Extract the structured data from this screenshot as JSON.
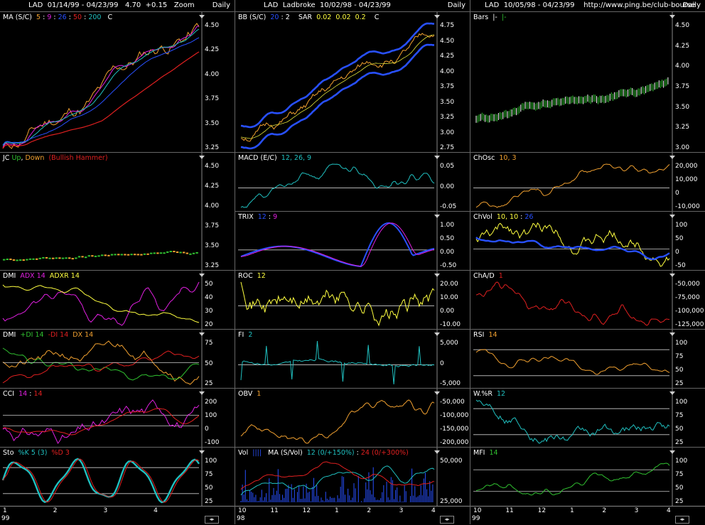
{
  "colors": {
    "bg": "#000000",
    "orange": "#f0a030",
    "blue": "#2850ff",
    "red": "#e02020",
    "green": "#30c030",
    "cyan": "#20c0c0",
    "yellow": "#ffff40",
    "magenta": "#e020e0",
    "white": "#ffffff"
  },
  "col1": {
    "title": "LAD  01/14/99 - 04/23/99   4.70  +0.15   Zoom",
    "period": "Daily",
    "panels": [
      {
        "id": "ma",
        "label": "MA (S/C) ",
        "label_parts": [
          {
            "t": "MA (S/C)  ",
            "c": "#ffffff"
          },
          {
            "t": "5",
            "c": "#f0a030"
          },
          {
            "t": " : ",
            "c": "#ffffff"
          },
          {
            "t": "9",
            "c": "#e020e0"
          },
          {
            "t": " : ",
            "c": "#ffffff"
          },
          {
            "t": "26",
            "c": "#2850ff"
          },
          {
            "t": " : ",
            "c": "#ffffff"
          },
          {
            "t": "50",
            "c": "#e02020"
          },
          {
            "t": " : ",
            "c": "#ffffff"
          },
          {
            "t": "200",
            "c": "#20c0c0"
          },
          {
            "t": "   C  ",
            "c": "#ffffff"
          }
        ],
        "ticks": [
          "4.50",
          "4.25",
          "4.00",
          "3.75",
          "3.50",
          "3.25"
        ]
      },
      {
        "id": "jc",
        "label_parts": [
          {
            "t": "JC ",
            "c": "#ffffff"
          },
          {
            "t": "Up",
            "c": "#30c030"
          },
          {
            "t": ", ",
            "c": "#ffffff"
          },
          {
            "t": "Down",
            "c": "#f0a030"
          },
          {
            "t": "  (Bullish Hammer)",
            "c": "#e02020"
          }
        ],
        "ticks": [
          "4.50",
          "4.25",
          "4.00",
          "3.75",
          "3.50",
          "3.25"
        ]
      },
      {
        "id": "dmi1",
        "label_parts": [
          {
            "t": "DMI  ",
            "c": "#ffffff"
          },
          {
            "t": "ADX 14",
            "c": "#e020e0"
          },
          {
            "t": "  ADXR 14",
            "c": "#ffff40"
          }
        ],
        "ticks": [
          "50",
          "40",
          "30",
          "20"
        ]
      },
      {
        "id": "dmi2",
        "label_parts": [
          {
            "t": "DMI  ",
            "c": "#ffffff"
          },
          {
            "t": "+DI 14",
            "c": "#30c030"
          },
          {
            "t": "  -DI 14",
            "c": "#e02020"
          },
          {
            "t": "  DX 14",
            "c": "#f0a030"
          }
        ],
        "ticks": [
          "75",
          "50",
          "25"
        ]
      },
      {
        "id": "cci",
        "label_parts": [
          {
            "t": "CCI  ",
            "c": "#ffffff"
          },
          {
            "t": "14",
            "c": "#e020e0"
          },
          {
            "t": " : ",
            "c": "#ffffff"
          },
          {
            "t": "14",
            "c": "#e02020"
          }
        ],
        "ticks": [
          "200",
          "100",
          "0",
          "-100"
        ]
      },
      {
        "id": "sto",
        "label_parts": [
          {
            "t": "Sto  ",
            "c": "#ffffff"
          },
          {
            "t": "%K 5 (3)",
            "c": "#20c0c0"
          },
          {
            "t": "  %D 3",
            "c": "#e02020"
          }
        ],
        "ticks": [
          "100",
          "75",
          "50",
          "25"
        ]
      }
    ],
    "xaxis": [
      "1",
      "2",
      "3",
      "4"
    ],
    "year": "99"
  },
  "col2": {
    "title": "LAD  Ladbroke  10/02/98 - 04/23/99",
    "period": "Daily",
    "panels": [
      {
        "id": "bb",
        "label_parts": [
          {
            "t": "BB (S/C)  ",
            "c": "#ffffff"
          },
          {
            "t": "20",
            "c": "#2850ff"
          },
          {
            "t": " : 2    SAR  ",
            "c": "#ffffff"
          },
          {
            "t": "0.02  0.02  0.2",
            "c": "#ffff40"
          },
          {
            "t": "    C  ",
            "c": "#ffffff"
          }
        ],
        "ticks": [
          "4.75",
          "4.50",
          "4.25",
          "4.00",
          "3.75",
          "3.50",
          "3.25",
          "3.00",
          "2.75"
        ]
      },
      {
        "id": "macd",
        "label_parts": [
          {
            "t": "MACD (E/C)  ",
            "c": "#ffffff"
          },
          {
            "t": "12, 26, 9",
            "c": "#20c0c0"
          }
        ],
        "ticks": [
          "0.05",
          "0.00",
          "-0.05"
        ]
      },
      {
        "id": "trix",
        "label_parts": [
          {
            "t": "TRIX  ",
            "c": "#ffffff"
          },
          {
            "t": "12",
            "c": "#2850ff"
          },
          {
            "t": " : ",
            "c": "#ffffff"
          },
          {
            "t": "9",
            "c": "#e020e0"
          }
        ],
        "ticks": [
          "1.00",
          "0.50",
          "0.00",
          "-0.50"
        ]
      },
      {
        "id": "roc",
        "label_parts": [
          {
            "t": "ROC  ",
            "c": "#ffffff"
          },
          {
            "t": "12",
            "c": "#ffff40"
          }
        ],
        "ticks": [
          "20.00",
          "10.00",
          "0.00",
          "-10.00"
        ]
      },
      {
        "id": "fi",
        "label_parts": [
          {
            "t": "FI  ",
            "c": "#ffffff"
          },
          {
            "t": "2",
            "c": "#20c0c0"
          }
        ],
        "ticks": [
          "5,000",
          "0",
          "-5,000"
        ]
      },
      {
        "id": "obv",
        "label_parts": [
          {
            "t": "OBV  ",
            "c": "#ffffff"
          },
          {
            "t": "1",
            "c": "#f0a030"
          }
        ],
        "ticks": [
          "-50,000",
          "-100,000",
          "-150,000",
          "-200,000"
        ]
      },
      {
        "id": "vol",
        "label_parts": [
          {
            "t": "Vol  ",
            "c": "#ffffff"
          },
          {
            "t": "||||",
            "c": "#2850ff"
          },
          {
            "t": "   MA (S/Vol)  ",
            "c": "#ffffff"
          },
          {
            "t": "12 (0/+150%)",
            "c": "#20c0c0"
          },
          {
            "t": " : ",
            "c": "#ffffff"
          },
          {
            "t": "24 (0/+300%)",
            "c": "#e02020"
          }
        ],
        "ticks": [
          "50,000",
          "25,000"
        ]
      }
    ],
    "xaxis": [
      "10",
      "11",
      "12",
      "1",
      "2",
      "3",
      "4"
    ],
    "year": "98"
  },
  "col3": {
    "title": "LAD  10/05/98 - 04/23/99    http://www.ping.be/club-bourse",
    "period": "Daily",
    "panels": [
      {
        "id": "bars",
        "label_parts": [
          {
            "t": "Bars  ",
            "c": "#ffffff"
          },
          {
            "t": "|-",
            "c": "#ffffff"
          },
          {
            "t": "  |-",
            "c": "#30c030"
          }
        ],
        "ticks": [
          "4.50",
          "4.25",
          "4.00",
          "3.75",
          "3.50",
          "3.25",
          "3.00"
        ]
      },
      {
        "id": "chosc",
        "label_parts": [
          {
            "t": "ChOsc  ",
            "c": "#ffffff"
          },
          {
            "t": "10, 3",
            "c": "#f0a030"
          }
        ],
        "ticks": [
          "20,000",
          "10,000",
          "0",
          "-10,000"
        ]
      },
      {
        "id": "chvol",
        "label_parts": [
          {
            "t": "ChVol  ",
            "c": "#ffffff"
          },
          {
            "t": "10, 10",
            "c": "#ffff40"
          },
          {
            "t": " : ",
            "c": "#ffffff"
          },
          {
            "t": "26",
            "c": "#2850ff"
          }
        ],
        "ticks": [
          "100",
          "50",
          "0",
          "-50"
        ]
      },
      {
        "id": "chad",
        "label_parts": [
          {
            "t": "ChA/D  ",
            "c": "#ffffff"
          },
          {
            "t": "1",
            "c": "#e02020"
          }
        ],
        "ticks": [
          "-50,000",
          "-75,000",
          "-100,000",
          "-125,000"
        ]
      },
      {
        "id": "rsi",
        "label_parts": [
          {
            "t": "RSI  ",
            "c": "#ffffff"
          },
          {
            "t": "14",
            "c": "#f0a030"
          }
        ],
        "ticks": [
          "100",
          "75",
          "50",
          "25"
        ]
      },
      {
        "id": "wr",
        "label_parts": [
          {
            "t": "W.%R  ",
            "c": "#ffffff"
          },
          {
            "t": "12",
            "c": "#20c0c0"
          }
        ],
        "ticks": [
          "100",
          "75",
          "50",
          "25"
        ]
      },
      {
        "id": "mfi",
        "label_parts": [
          {
            "t": "MFI  ",
            "c": "#ffffff"
          },
          {
            "t": "14",
            "c": "#30c030"
          }
        ],
        "ticks": [
          "100",
          "75",
          "50",
          "25"
        ]
      }
    ],
    "xaxis": [
      "10",
      "11",
      "12",
      "1",
      "2",
      "3",
      "4"
    ],
    "year": "99"
  }
}
